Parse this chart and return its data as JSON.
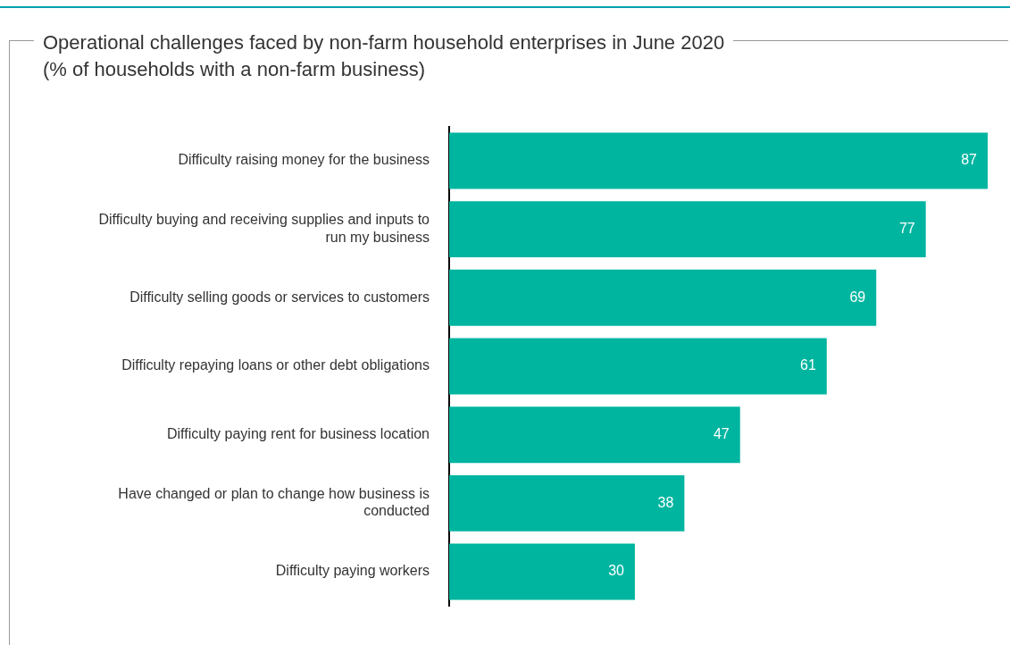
{
  "chart_data": {
    "type": "bar",
    "orientation": "horizontal",
    "title": "Operational challenges faced by non-farm household enterprises in June 2020",
    "subtitle": "(% of households with a non-farm business)",
    "categories": [
      "Difficulty raising money for the business",
      "Difficulty buying and receiving supplies and inputs to run my business",
      "Difficulty selling goods or services to customers",
      "Difficulty repaying loans or other debt obligations",
      "Difficulty paying rent for business location",
      "Have changed or plan to change how business is conducted",
      "Difficulty paying workers"
    ],
    "values": [
      87,
      77,
      69,
      61,
      47,
      38,
      30
    ],
    "color": "#00b5a0",
    "data_labels": true
  }
}
